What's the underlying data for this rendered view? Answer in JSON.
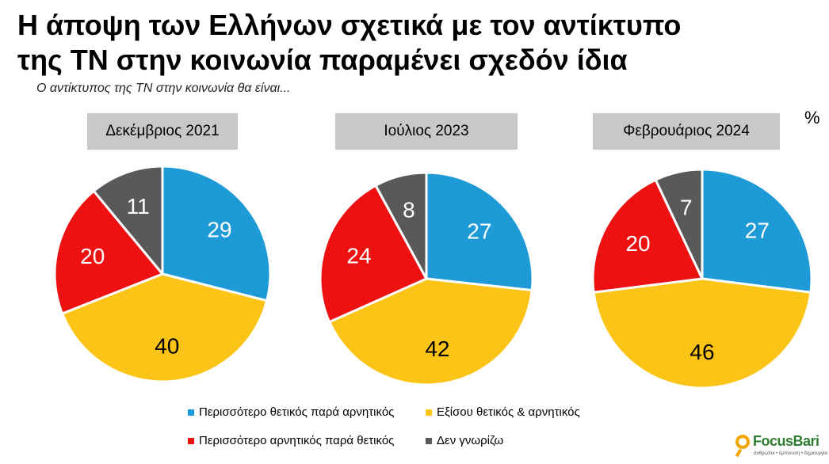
{
  "title_line1": "Η άποψη των Ελλήνων σχετικά με τον αντίκτυπο",
  "title_line2": "της ΤΝ στην κοινωνία παραμένει σχεδόν ίδια",
  "subtitle": "Ο αντίκτυπος της ΤΝ στην κοινωνία θα είναι...",
  "unit": "%",
  "colors": {
    "more_positive": "#1e9bd7",
    "equal": "#fdc418",
    "more_negative": "#ee1111",
    "dont_know": "#595959"
  },
  "legend": [
    {
      "key": "more_positive",
      "label": "Περισσότερο θετικός παρά αρνητικός"
    },
    {
      "key": "equal",
      "label": "Εξίσου θετικός & αρνητικός"
    },
    {
      "key": "more_negative",
      "label": "Περισσότερο αρνητικός παρά θετικός"
    },
    {
      "key": "dont_know",
      "label": "Δεν γνωρίζω"
    }
  ],
  "chart_data": [
    {
      "type": "pie",
      "title": "Δεκέμβριος 2021",
      "categories": [
        "Περισσότερο θετικός παρά αρνητικός",
        "Εξίσου θετικός & αρνητικός",
        "Περισσότερο αρνητικός παρά θετικός",
        "Δεν γνωρίζω"
      ],
      "values": [
        29,
        40,
        20,
        11
      ],
      "labels": [
        "29",
        "40",
        "20",
        "11"
      ]
    },
    {
      "type": "pie",
      "title": "Ιούλιος 2023",
      "categories": [
        "Περισσότερο θετικός παρά αρνητικός",
        "Εξίσου θετικός & αρνητικός",
        "Περισσότερο αρνητικός παρά θετικός",
        "Δεν γνωρίζω"
      ],
      "values": [
        27,
        42,
        24,
        8
      ],
      "labels": [
        "27",
        "42",
        "24",
        "8"
      ]
    },
    {
      "type": "pie",
      "title": "Φεβρουάριος 2024",
      "categories": [
        "Περισσότερο θετικός παρά αρνητικός",
        "Εξίσου θετικός & αρνητικός",
        "Περισσότερο αρνητικός παρά θετικός",
        "Δεν γνωρίζω"
      ],
      "values": [
        27,
        46,
        20,
        7
      ],
      "labels": [
        "27",
        "46",
        "20",
        "7"
      ]
    }
  ],
  "logo": {
    "brand_focus": "Focus",
    "brand_bari": "Bari",
    "tagline": "άνθρωποι • έμπνευση • δημιουργία"
  }
}
